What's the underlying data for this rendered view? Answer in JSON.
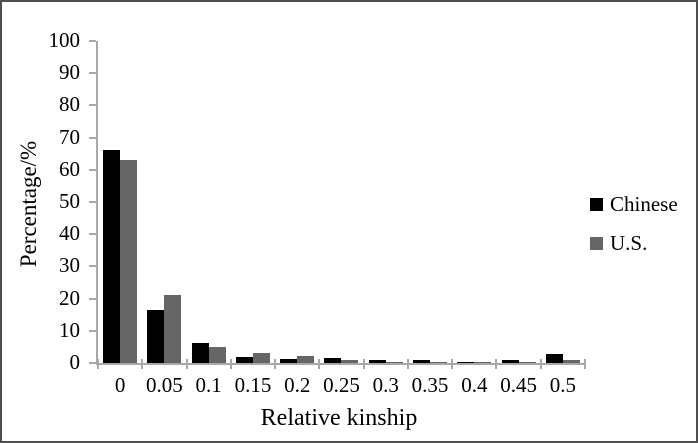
{
  "figure": {
    "y_axis_title": "Percentage/%",
    "x_axis_title": "Relative kinship"
  },
  "chart_data": {
    "type": "bar",
    "title": "",
    "xlabel": "Relative kinship",
    "ylabel": "Percentage/%",
    "ylim": [
      0,
      100
    ],
    "y_ticks": [
      0,
      10,
      20,
      30,
      40,
      50,
      60,
      70,
      80,
      90,
      100
    ],
    "categories": [
      "0",
      "0.05",
      "0.1",
      "0.15",
      "0.2",
      "0.25",
      "0.3",
      "0.35",
      "0.4",
      "0.45",
      "0.5"
    ],
    "series": [
      {
        "name": "Chinese",
        "color": "#000000",
        "values": [
          66,
          16.5,
          6.2,
          1.8,
          1.3,
          1.6,
          1.0,
          1.0,
          0.2,
          0.9,
          2.7
        ]
      },
      {
        "name": "U.S.",
        "color": "#666666",
        "values": [
          63,
          21,
          5.0,
          3.2,
          2.2,
          0.8,
          0.4,
          0.3,
          0.25,
          0.4,
          0.9
        ]
      }
    ],
    "legend_position": "right",
    "grid": false
  },
  "colors": {
    "axis": "#a8a8a8",
    "frame": "#4f4f4f",
    "text": "#000000"
  }
}
